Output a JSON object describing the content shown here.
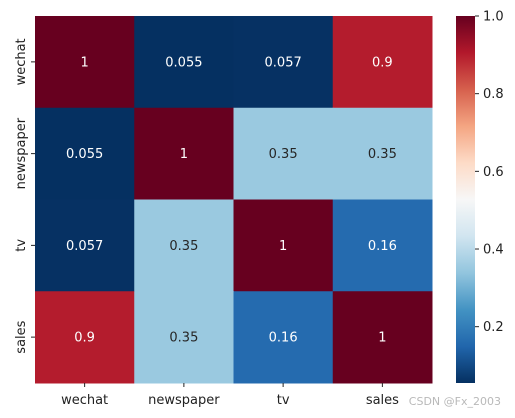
{
  "chart_data": {
    "type": "heatmap",
    "title": "",
    "xlabel": "",
    "ylabel": "",
    "x_categories": [
      "wechat",
      "newspaper",
      "tv",
      "sales"
    ],
    "y_categories": [
      "wechat",
      "newspaper",
      "tv",
      "sales"
    ],
    "values": [
      [
        1,
        0.055,
        0.057,
        0.9
      ],
      [
        0.055,
        1,
        0.35,
        0.35
      ],
      [
        0.057,
        0.35,
        1,
        0.16
      ],
      [
        0.9,
        0.35,
        0.16,
        1
      ]
    ],
    "annotations": [
      [
        "1",
        "0.055",
        "0.057",
        "0.9"
      ],
      [
        "0.055",
        "1",
        "0.35",
        "0.35"
      ],
      [
        "0.057",
        "0.35",
        "1",
        "0.16"
      ],
      [
        "0.9",
        "0.35",
        "0.16",
        "1"
      ]
    ],
    "colormap": "RdBu_r",
    "colorbar": {
      "range": [
        0.055,
        1.0
      ],
      "ticks": [
        0.2,
        0.4,
        0.6,
        0.8,
        1.0
      ],
      "tick_labels": [
        "0.2",
        "0.4",
        "0.6",
        "0.8",
        "1.0"
      ]
    }
  },
  "watermark": "CSDN @Fx_2003"
}
